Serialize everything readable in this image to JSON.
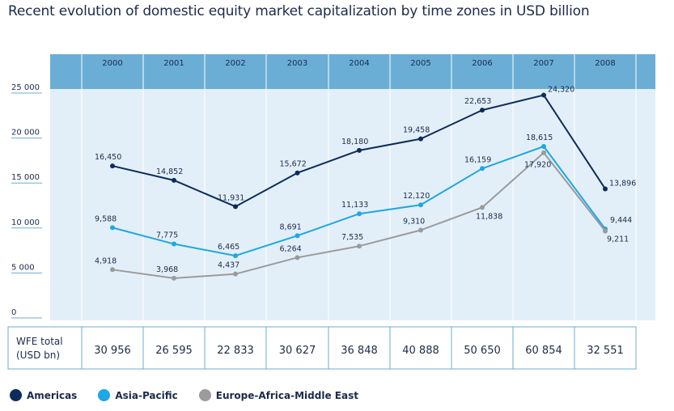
{
  "title": "Recent evolution of domestic equity market capitalization by time zones in USD billion",
  "colors": {
    "header": "#6aaed6",
    "plot_bg": "#e3eff8",
    "americas": "#0d2c5c",
    "asia_pacific": "#1ea7e3",
    "emea": "#9a9b9c"
  },
  "chart_data": {
    "type": "line",
    "title": "Recent evolution of domestic equity market capitalization by time zones in USD billion",
    "categories": [
      "2000",
      "2001",
      "2002",
      "2003",
      "2004",
      "2005",
      "2006",
      "2007",
      "2008"
    ],
    "ylim": [
      0,
      25000
    ],
    "yticks": [
      0,
      5000,
      10000,
      15000,
      20000,
      25000
    ],
    "ytick_labels": [
      "0",
      "5 000",
      "10 000",
      "15 000",
      "20 000",
      "25 000"
    ],
    "grid": false,
    "legend": "bottom-left",
    "series": [
      {
        "name": "Americas",
        "color": "#0d2c5c",
        "values": [
          16450,
          14852,
          11931,
          15672,
          18180,
          19458,
          22653,
          24320,
          13896
        ],
        "labels": [
          "16,450",
          "14,852",
          "11,931",
          "15,672",
          "18,180",
          "19,458",
          "22,653",
          "24,320",
          "13,896"
        ]
      },
      {
        "name": "Asia-Pacific",
        "color": "#1ea7e3",
        "values": [
          9588,
          7775,
          6465,
          8691,
          11133,
          12120,
          16159,
          18615,
          9444
        ],
        "labels": [
          "9,588",
          "7,775",
          "6,465",
          "8,691",
          "11,133",
          "12,120",
          "16,159",
          "18,615",
          "9,444"
        ]
      },
      {
        "name": "Europe-Africa-Middle East",
        "color": "#9a9b9c",
        "values": [
          4918,
          3968,
          4437,
          6264,
          7535,
          9310,
          11838,
          17920,
          9211
        ],
        "labels": [
          "4,918",
          "3,968",
          "4,437",
          "6,264",
          "7,535",
          "9,310",
          "11,838",
          "17,920",
          "9,211"
        ]
      }
    ],
    "wfe_total_label": [
      "WFE total",
      "(USD bn)"
    ],
    "wfe_totals": [
      "30 956",
      "26 595",
      "22 833",
      "30 627",
      "36 848",
      "40 888",
      "50 650",
      "60 854",
      "32 551"
    ]
  }
}
